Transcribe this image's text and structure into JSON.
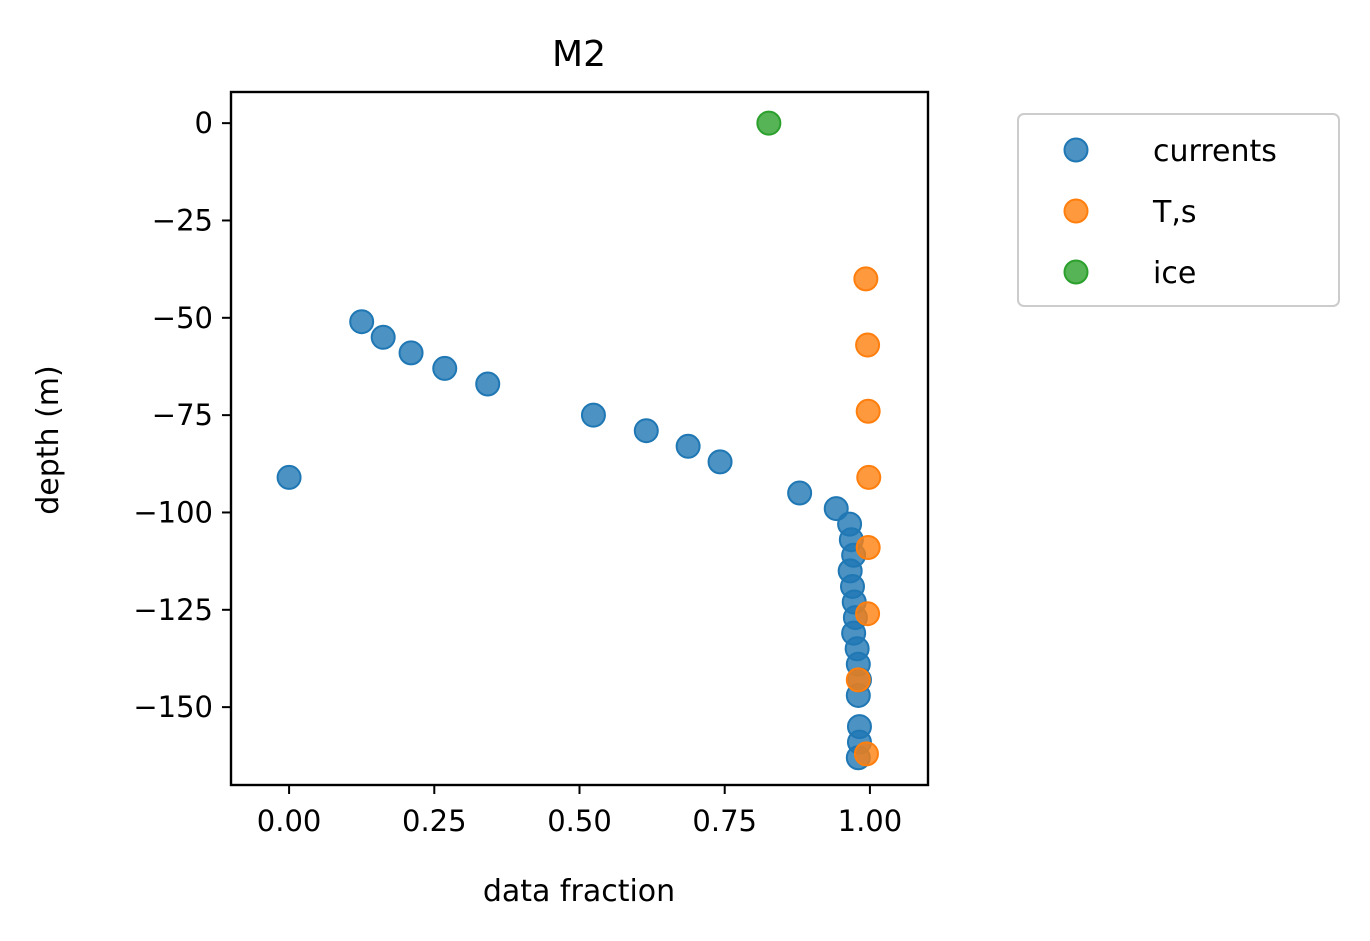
{
  "chart_data": {
    "type": "scatter",
    "title": "M2",
    "xlabel": "data fraction",
    "ylabel": "depth (m)",
    "xlim": [
      -0.1,
      1.1
    ],
    "ylim": [
      -170,
      8
    ],
    "xticks": [
      0.0,
      0.25,
      0.5,
      0.75,
      1.0
    ],
    "xtick_labels": [
      "0.00",
      "0.25",
      "0.50",
      "0.75",
      "1.00"
    ],
    "yticks": [
      0,
      -25,
      -50,
      -75,
      -100,
      -125,
      -150
    ],
    "ytick_labels": [
      "0",
      "−25",
      "−50",
      "−75",
      "−100",
      "−125",
      "−150"
    ],
    "grid": false,
    "legend_position": "outside-right-top",
    "series": [
      {
        "name": "currents",
        "color": "#1f77b4",
        "points": [
          [
            0.0,
            -91
          ],
          [
            0.125,
            -51
          ],
          [
            0.162,
            -55
          ],
          [
            0.21,
            -59
          ],
          [
            0.268,
            -63
          ],
          [
            0.342,
            -67
          ],
          [
            0.524,
            -75
          ],
          [
            0.615,
            -79
          ],
          [
            0.687,
            -83
          ],
          [
            0.742,
            -87
          ],
          [
            0.879,
            -95
          ],
          [
            0.942,
            -99
          ],
          [
            0.965,
            -103
          ],
          [
            0.968,
            -107
          ],
          [
            0.972,
            -111
          ],
          [
            0.966,
            -115
          ],
          [
            0.97,
            -119
          ],
          [
            0.973,
            -123
          ],
          [
            0.975,
            -127
          ],
          [
            0.972,
            -131
          ],
          [
            0.978,
            -135
          ],
          [
            0.98,
            -139
          ],
          [
            0.982,
            -143
          ],
          [
            0.98,
            -147
          ],
          [
            0.982,
            -155
          ],
          [
            0.982,
            -159
          ],
          [
            0.98,
            -163
          ]
        ]
      },
      {
        "name": "T,s",
        "color": "#ff7f0e",
        "points": [
          [
            0.993,
            -40
          ],
          [
            0.996,
            -57
          ],
          [
            0.997,
            -74
          ],
          [
            0.998,
            -91
          ],
          [
            0.997,
            -109
          ],
          [
            0.996,
            -126
          ],
          [
            0.98,
            -143
          ],
          [
            0.994,
            -162
          ]
        ]
      },
      {
        "name": "ice",
        "color": "#2ca02c",
        "points": [
          [
            0.826,
            0
          ]
        ]
      }
    ]
  }
}
